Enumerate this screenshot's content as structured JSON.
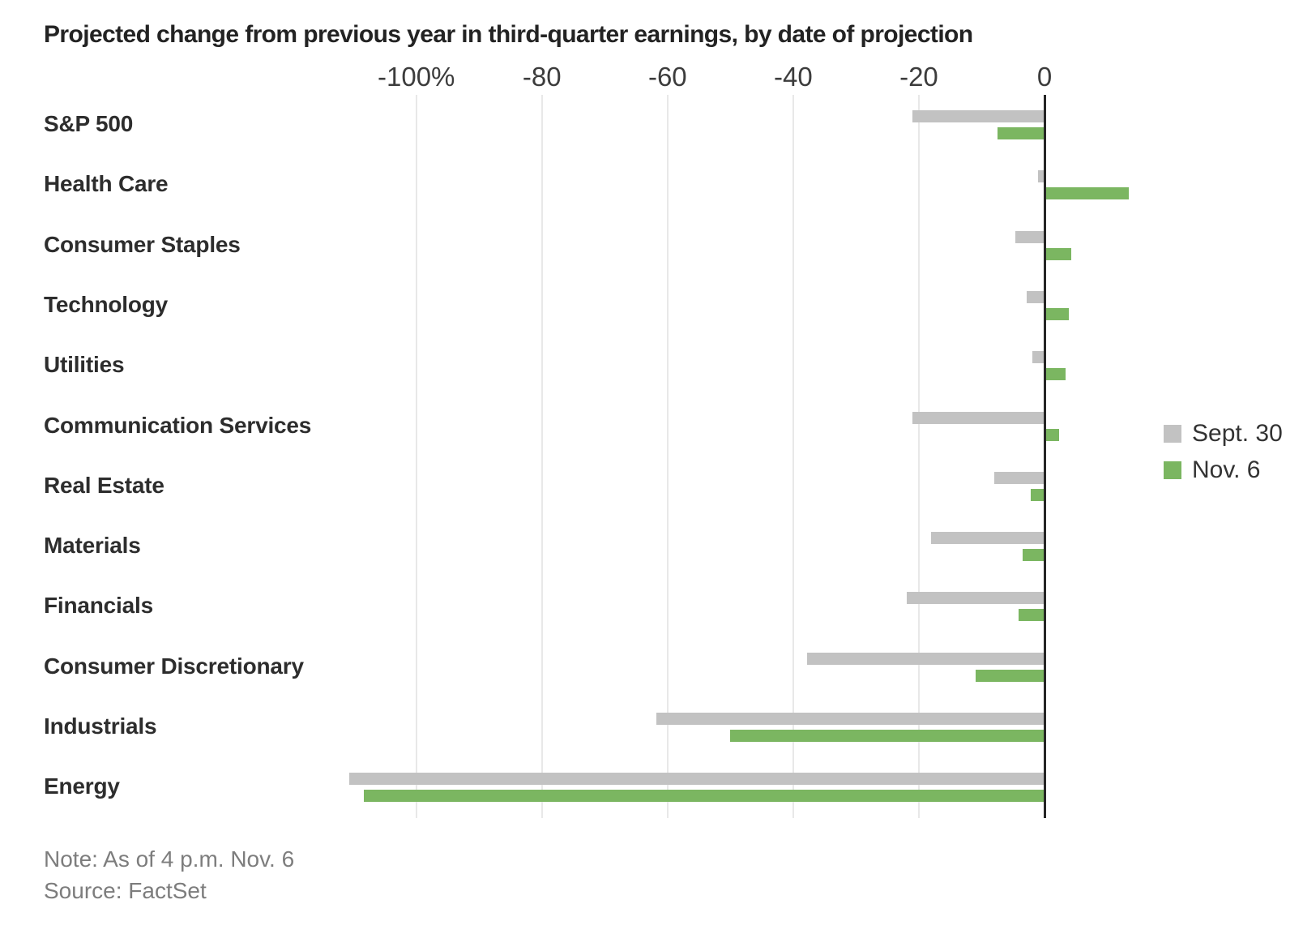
{
  "title": "Projected change from previous year in third-quarter earnings, by date of projection",
  "chart_data": {
    "type": "bar",
    "orientation": "horizontal",
    "unit": "percent",
    "title": "Projected change from previous year in third-quarter earnings, by date of projection",
    "categories": [
      "S&P 500",
      "Health Care",
      "Consumer Staples",
      "Technology",
      "Utilities",
      "Communication Services",
      "Real Estate",
      "Materials",
      "Financials",
      "Consumer Discretionary",
      "Industrials",
      "Energy"
    ],
    "series": [
      {
        "name": "Sept. 30",
        "color": "#c2c2c2",
        "values": [
          -21,
          -1,
          -4.7,
          -2.9,
          -1.9,
          -21,
          -8,
          -18,
          -21.9,
          -37.8,
          -61.8,
          -110.7
        ]
      },
      {
        "name": "Nov. 6",
        "color": "#7bb661",
        "values": [
          -7.5,
          13.4,
          4.2,
          3.9,
          3.3,
          2.3,
          -2.2,
          -3.5,
          -4.1,
          -10.9,
          -50.1,
          -108.3
        ]
      }
    ],
    "x_ticks": [
      -100,
      -80,
      -60,
      -40,
      -20,
      0
    ],
    "x_tick_labels": [
      "-100%",
      "-80",
      "-60",
      "-40",
      "-20",
      "0"
    ],
    "xlim": [
      -115,
      14
    ],
    "grid": "vertical-light-gridlines, dark zero baseline",
    "legend_position": "right-middle"
  },
  "legend": {
    "items": [
      {
        "label": "Sept. 30",
        "color": "#c2c2c2"
      },
      {
        "label": "Nov. 6",
        "color": "#7bb661"
      }
    ]
  },
  "note": "Note: As of 4 p.m. Nov. 6",
  "source": "Source: FactSet"
}
